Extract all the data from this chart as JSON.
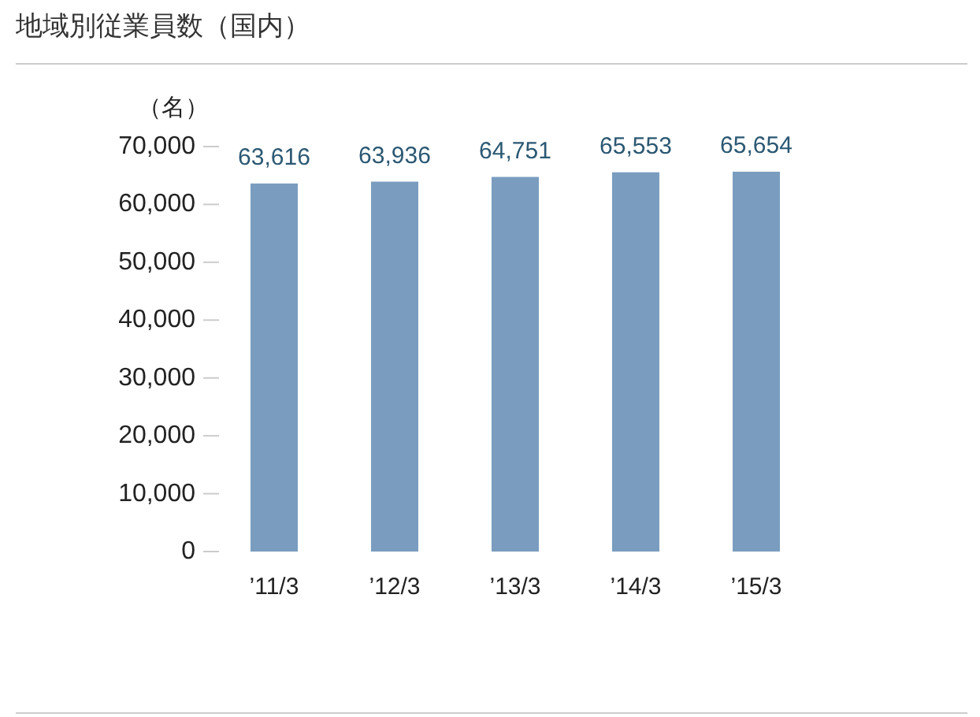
{
  "chart_data": {
    "type": "bar",
    "title": "地域別従業員数（国内）",
    "ylabel": "（名）",
    "categories": [
      "’11/3",
      "’12/3",
      "’13/3",
      "’14/3",
      "’15/3"
    ],
    "values": [
      63616,
      63936,
      64751,
      65553,
      65654
    ],
    "color": "#7a9dbf",
    "value_labels": [
      "63,616",
      "63,936",
      "64,751",
      "65,553",
      "65,654"
    ],
    "ylim": [
      0,
      70000
    ],
    "yticks": [
      0,
      {
        "value": 10000,
        "label": "10,000"
      },
      {
        "value": 20000,
        "label": "20,000"
      },
      {
        "value": 30000,
        "label": "30,000"
      },
      {
        "value": 40000,
        "label": "40,000"
      },
      {
        "value": 50000,
        "label": "50,000"
      },
      {
        "value": 60000,
        "label": "60,000"
      },
      {
        "value": 70000,
        "label": "70,000"
      }
    ],
    "grid": false
  }
}
